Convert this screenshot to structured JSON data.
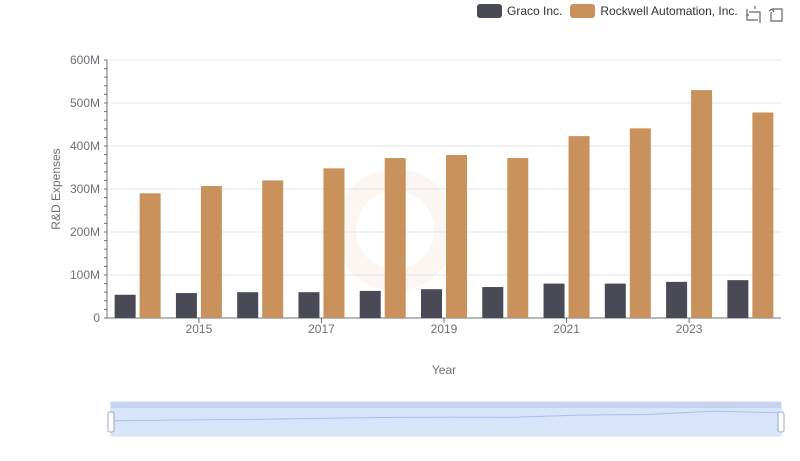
{
  "legend": {
    "items": [
      {
        "label": "Graco Inc.",
        "color": "#4a4a56"
      },
      {
        "label": "Rockwell Automation, Inc.",
        "color": "#c9915c"
      }
    ]
  },
  "toolbox": {
    "icons": [
      "zoom-icon",
      "restore-icon"
    ]
  },
  "chart_data": {
    "type": "bar",
    "xlabel": "Year",
    "ylabel": "R&D Expenses",
    "ylim": [
      0,
      600000000
    ],
    "yticks": [
      {
        "value": 0,
        "label": "0"
      },
      {
        "value": 100000000,
        "label": "100M"
      },
      {
        "value": 200000000,
        "label": "200M"
      },
      {
        "value": 300000000,
        "label": "300M"
      },
      {
        "value": 400000000,
        "label": "400M"
      },
      {
        "value": 500000000,
        "label": "500M"
      },
      {
        "value": 600000000,
        "label": "600M"
      }
    ],
    "categories": [
      "2014",
      "2015",
      "2016",
      "2017",
      "2018",
      "2019",
      "2020",
      "2021",
      "2022",
      "2023",
      "2024"
    ],
    "xtick_labels": [
      "2015",
      "2017",
      "2019",
      "2021",
      "2023"
    ],
    "series": [
      {
        "name": "Graco Inc.",
        "color": "#4a4a56",
        "values": [
          54000000,
          58000000,
          60000000,
          60000000,
          63000000,
          67000000,
          72000000,
          80000000,
          80000000,
          84000000,
          88000000
        ]
      },
      {
        "name": "Rockwell Automation, Inc.",
        "color": "#c9915c",
        "values": [
          290000000,
          307000000,
          320000000,
          348000000,
          372000000,
          379000000,
          372000000,
          423000000,
          441000000,
          530000000,
          478000000
        ]
      }
    ],
    "grid": true,
    "legend_position": "top-right",
    "data_zoom": {
      "start": 0,
      "end": 100
    }
  }
}
